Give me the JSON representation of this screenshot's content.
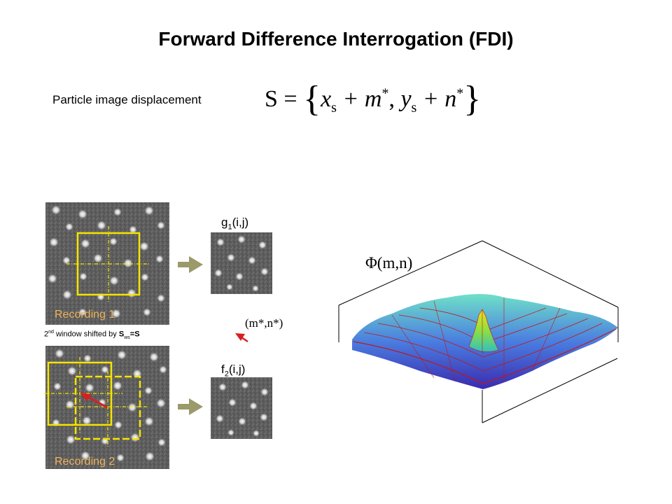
{
  "slide": {
    "title": "Forward Difference Interrogation (FDI)"
  },
  "displacement": {
    "label": "Particle image displacement",
    "equation": {
      "lhs": "S =",
      "open": "{",
      "x": "x",
      "s1": "s",
      "plus1": " + m",
      "star1": "*",
      "comma": ", ",
      "y": "y",
      "s2": "s",
      "plus2": " + n",
      "star2": "*",
      "close": "}"
    }
  },
  "recording1": {
    "label": "Recording 1"
  },
  "recording2": {
    "label": "Recording 2"
  },
  "shift_caption": {
    "prefix": "2",
    "sup": "nd",
    "middle": " window shifted by ",
    "S": "S",
    "sub": "ws",
    "suffix": "=S"
  },
  "window_g": {
    "f": "g",
    "sub": "1",
    "args": "(i,j)"
  },
  "window_f": {
    "f": "f",
    "sub": "2",
    "args": "(i,j)"
  },
  "peak_label": "(m*,n*)",
  "correlation": {
    "label": "Φ(m,n)"
  },
  "colors": {
    "window_outline": "#f5e400",
    "arrow": "#9a9a6a",
    "red_arrow": "#d62020",
    "recording_label": "#f0b25a"
  }
}
